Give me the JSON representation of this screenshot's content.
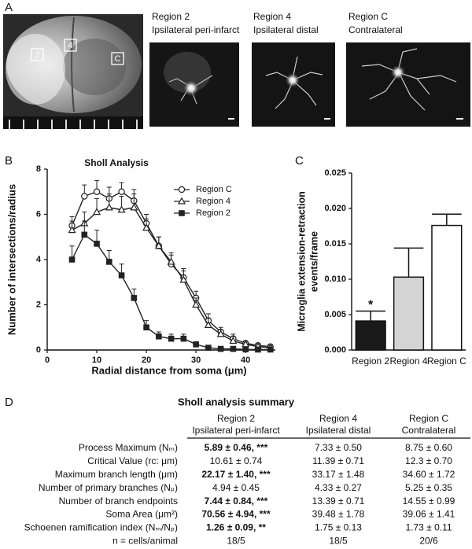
{
  "panels": [
    "A",
    "B",
    "C",
    "D"
  ],
  "figure_a": {
    "brain_labels": [
      "2",
      "4",
      "C"
    ],
    "images": [
      {
        "title": "Region 2",
        "subtitle": "Ipsilateral peri-infarct"
      },
      {
        "title": "Region 4",
        "subtitle": "Ipsilateral distal"
      },
      {
        "title": "Region C",
        "subtitle": "Contralateral"
      }
    ]
  },
  "chart_data": [
    {
      "type": "line",
      "title": "Sholl Analysis",
      "xlabel": "Radial distance from soma (μm)",
      "ylabel": "Number of intersections/radius",
      "x": [
        5,
        7.5,
        10,
        12.5,
        15,
        17.5,
        20,
        22.5,
        25,
        27.5,
        30,
        32.5,
        35,
        37.5,
        40,
        42.5,
        45
      ],
      "xlim": [
        0,
        46
      ],
      "xticks": [
        0,
        10,
        20,
        30,
        40
      ],
      "ylim": [
        0,
        8
      ],
      "yticks": [
        0,
        2,
        4,
        6,
        8
      ],
      "series": [
        {
          "name": "Region C",
          "color": "#222222",
          "marker": "circle",
          "marker_fill": "#ffffff",
          "values": [
            5.5,
            6.8,
            7.0,
            6.7,
            7.0,
            6.6,
            5.6,
            4.6,
            3.8,
            3.2,
            2.3,
            1.3,
            0.8,
            0.5,
            0.3,
            0.2,
            0.15
          ],
          "errors": [
            0.4,
            0.5,
            0.5,
            0.5,
            0.4,
            0.5,
            0.4,
            0.4,
            0.4,
            0.4,
            0.3,
            0.3,
            0.2,
            0.2,
            0.1,
            0.1,
            0.1
          ]
        },
        {
          "name": "Region 4",
          "color": "#222222",
          "marker": "triangle",
          "marker_fill": "#ffffff",
          "values": [
            5.3,
            5.6,
            6.1,
            6.3,
            6.2,
            6.3,
            5.4,
            4.6,
            3.9,
            3.1,
            2.0,
            1.1,
            0.7,
            0.4,
            0.25,
            0.15,
            0.1
          ],
          "errors": [
            0.4,
            0.5,
            0.6,
            0.6,
            0.6,
            0.6,
            0.4,
            0.4,
            0.4,
            0.4,
            0.3,
            0.3,
            0.2,
            0.2,
            0.1,
            0.1,
            0.1
          ]
        },
        {
          "name": "Region 2",
          "color": "#222222",
          "marker": "square",
          "marker_fill": "#222222",
          "values": [
            4.0,
            5.1,
            4.7,
            3.9,
            3.3,
            2.3,
            1.0,
            0.6,
            0.5,
            0.5,
            0.25,
            0.1,
            0.05,
            0.05,
            0.03,
            0.02,
            0.02
          ],
          "errors": [
            0.6,
            0.6,
            0.6,
            0.5,
            0.5,
            0.4,
            0.3,
            0.2,
            0.2,
            0.2,
            0.1,
            0.1,
            0.05,
            0.05,
            0.05,
            0.05,
            0.05
          ]
        }
      ]
    },
    {
      "type": "bar",
      "ylabel": [
        "Microglia extension-retraction",
        "events/frame"
      ],
      "categories": [
        "Region 2",
        "Region 4",
        "Region C"
      ],
      "values": [
        0.0041,
        0.0103,
        0.0176
      ],
      "errors": [
        0.0014,
        0.0041,
        0.0016
      ],
      "colors": [
        "#1a1a1a",
        "#d4d4d4",
        "#ffffff"
      ],
      "ylim": [
        0,
        0.025
      ],
      "yticks": [
        {
          "value": 0,
          "label": "0.000"
        },
        0.005,
        {
          "value": 0.01,
          "label": "0.010"
        },
        0.015,
        {
          "value": 0.02,
          "label": "0.020"
        },
        0.025
      ],
      "annotations": [
        "*"
      ]
    }
  ],
  "table": {
    "title": "Sholl analysis summary",
    "columns": [
      [
        "Region 2",
        "Ipsilateral peri-infarct"
      ],
      [
        "Region 4",
        "Ipsilateral distal"
      ],
      [
        "Region C",
        "Contralateral"
      ]
    ],
    "rows": [
      {
        "label": "Process Maximum (Nₘ)",
        "values": [
          "5.89 ± 0.46, ***",
          "7.33 ± 0.50",
          "8.75 ± 0.60"
        ],
        "bold": true
      },
      {
        "label": "Critical Value (rc: μm)",
        "values": [
          "10.61 ± 0.74",
          "11.39 ± 0.71",
          "12.3 ± 0.70"
        ],
        "bold": false
      },
      {
        "label": "Maximum branch length (μm)",
        "values": [
          "22.17 ± 1.40, ***",
          "33.17 ± 1.48",
          "34.60 ± 1.72"
        ],
        "bold": true
      },
      {
        "label": "Number of primary branches (Nₚ)",
        "values": [
          "4.94 ± 0.45",
          "4.33 ± 0.27",
          "5.25 ± 0.35"
        ],
        "bold": false
      },
      {
        "label": "Number of branch endpoints",
        "values": [
          "7.44 ± 0.84, ***",
          "13.39 ± 0.71",
          "14.55 ± 0.99"
        ],
        "bold": true
      },
      {
        "label": "Soma Area (μm²)",
        "values": [
          "70.56 ± 4.94, ***",
          "39.48 ± 1.78",
          "39.06 ± 1.41"
        ],
        "bold": true
      },
      {
        "label": "Schoenen ramification index (Nₘ/Nₚ)",
        "values": [
          "1.26 ± 0.09, **",
          "1.75 ± 0.13",
          "1.73 ± 0.11"
        ],
        "bold": true
      },
      {
        "label": "n = cells/animal",
        "values": [
          "18/5",
          "18/5",
          "20/6"
        ],
        "bold": false
      }
    ]
  }
}
